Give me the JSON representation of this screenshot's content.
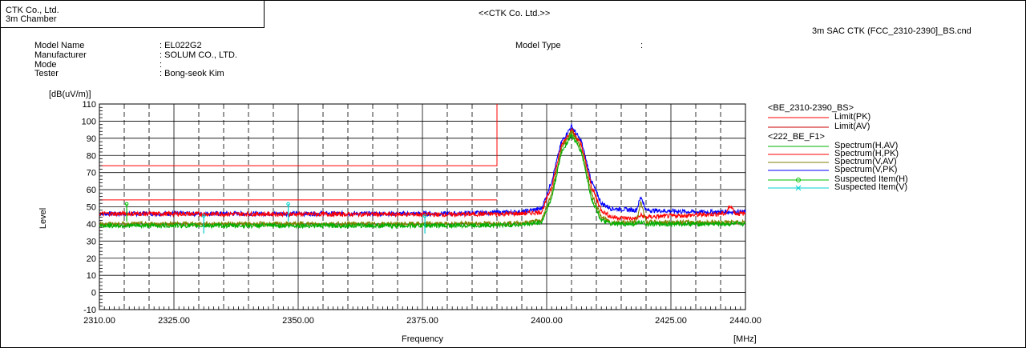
{
  "header": {
    "company_line1": "CTK Co., Ltd.",
    "company_line2": "3m Chamber",
    "center_title": "<<CTK Co. Ltd.>>",
    "file_name": "3m SAC CTK (FCC_2310-2390]_BS.cnd"
  },
  "info": {
    "model_name_label": "Model Name",
    "model_name_value": ": EL022G2",
    "manufacturer_label": "Manufacturer",
    "manufacturer_value": ": SOLUM CO., LTD.",
    "mode_label": "Mode",
    "mode_value": ":",
    "tester_label": "Tester",
    "tester_value": ": Bong-seok Kim",
    "model_type_label": "Model Type",
    "model_type_value": ":"
  },
  "legend": {
    "group1_title": "<BE_2310-2390_BS>",
    "group2_title": "<222_BE_F1>",
    "items": [
      {
        "label": "Limit(PK)",
        "color": "#ff0000",
        "marker": ""
      },
      {
        "label": "Limit(AV)",
        "color": "#cc0000",
        "marker": ""
      },
      {
        "label": "Spectrum(H,AV)",
        "color": "#00b000",
        "marker": ""
      },
      {
        "label": "Spectrum(H,PK)",
        "color": "#ff0000",
        "marker": ""
      },
      {
        "label": "Spectrum(V,AV)",
        "color": "#808000",
        "marker": ""
      },
      {
        "label": "Spectrum(V,PK)",
        "color": "#0000ff",
        "marker": ""
      },
      {
        "label": "Suspected Item(H)",
        "color": "#00c000",
        "marker": "o"
      },
      {
        "label": "Suspected Item(V)",
        "color": "#00d0d0",
        "marker": "x"
      }
    ]
  },
  "chart_data": {
    "type": "line",
    "ylabel": "Level",
    "yunit": "[dB(uV/m)]",
    "xlabel": "Frequency",
    "xunit": "[MHz]",
    "xlim": [
      2310,
      2440
    ],
    "ylim": [
      -10,
      110
    ],
    "x_ticks": [
      "2310.00",
      "2325.00",
      "2350.00",
      "2375.00",
      "2400.00",
      "2425.00",
      "2440.00"
    ],
    "x_tick_values": [
      2310,
      2325,
      2350,
      2375,
      2400,
      2425,
      2440
    ],
    "y_ticks": [
      110,
      100,
      90,
      80,
      70,
      60,
      50,
      40,
      30,
      20,
      10,
      0,
      -10
    ],
    "grid": true,
    "limits": [
      {
        "name": "Limit(PK)",
        "color": "#ff0000",
        "points": [
          [
            2310,
            74
          ],
          [
            2390,
            74
          ],
          [
            2390,
            110
          ]
        ]
      },
      {
        "name": "Limit(AV)",
        "color": "#ff0000",
        "points": [
          [
            2310,
            54
          ],
          [
            2390,
            54
          ]
        ]
      }
    ],
    "series": [
      {
        "name": "Spectrum(V,PK)",
        "color": "#0000ff",
        "points": [
          [
            2310,
            46
          ],
          [
            2380,
            46
          ],
          [
            2395,
            47
          ],
          [
            2399,
            49
          ],
          [
            2401,
            65
          ],
          [
            2403,
            88
          ],
          [
            2405,
            97
          ],
          [
            2407,
            88
          ],
          [
            2409,
            65
          ],
          [
            2411,
            52
          ],
          [
            2413,
            49
          ],
          [
            2418,
            48
          ],
          [
            2419,
            56
          ],
          [
            2420,
            48
          ],
          [
            2430,
            47
          ],
          [
            2440,
            47
          ]
        ]
      },
      {
        "name": "Spectrum(H,PK)",
        "color": "#ff0000",
        "points": [
          [
            2310,
            46
          ],
          [
            2380,
            45.5
          ],
          [
            2395,
            46
          ],
          [
            2399,
            47
          ],
          [
            2401,
            62
          ],
          [
            2403,
            86
          ],
          [
            2405,
            95
          ],
          [
            2407,
            86
          ],
          [
            2409,
            62
          ],
          [
            2411,
            48
          ],
          [
            2413,
            44
          ],
          [
            2418,
            43
          ],
          [
            2419,
            45
          ],
          [
            2420,
            44
          ],
          [
            2436,
            46
          ],
          [
            2437,
            51
          ],
          [
            2438,
            46
          ],
          [
            2440,
            46
          ]
        ]
      },
      {
        "name": "Spectrum(V,AV)",
        "color": "#808000",
        "points": [
          [
            2310,
            40
          ],
          [
            2380,
            40
          ],
          [
            2395,
            40.5
          ],
          [
            2399,
            42
          ],
          [
            2401,
            58
          ],
          [
            2403,
            84
          ],
          [
            2405,
            94
          ],
          [
            2407,
            84
          ],
          [
            2409,
            58
          ],
          [
            2411,
            44
          ],
          [
            2413,
            41
          ],
          [
            2418,
            41
          ],
          [
            2419,
            53
          ],
          [
            2420,
            41
          ],
          [
            2440,
            41
          ]
        ]
      },
      {
        "name": "Spectrum(H,AV)",
        "color": "#00b000",
        "points": [
          [
            2310,
            39
          ],
          [
            2380,
            39
          ],
          [
            2395,
            39.5
          ],
          [
            2399,
            41
          ],
          [
            2401,
            55
          ],
          [
            2403,
            82
          ],
          [
            2405,
            92
          ],
          [
            2407,
            82
          ],
          [
            2409,
            55
          ],
          [
            2411,
            42
          ],
          [
            2413,
            40
          ],
          [
            2418,
            40
          ],
          [
            2419,
            41
          ],
          [
            2420,
            40
          ],
          [
            2440,
            40
          ]
        ]
      }
    ],
    "suspected": [
      {
        "name": "Suspected Item(H)",
        "color": "#00c000",
        "x": 2315.5,
        "y": 47
      },
      {
        "name": "Suspected Item(V)",
        "color": "#00d0d0",
        "x": 2331,
        "y": 40
      },
      {
        "name": "Suspected Item(V)",
        "color": "#00d0d0",
        "x": 2348,
        "y": 47
      },
      {
        "name": "Suspected Item(V)",
        "color": "#00d0d0",
        "x": 2375.5,
        "y": 40
      }
    ]
  }
}
